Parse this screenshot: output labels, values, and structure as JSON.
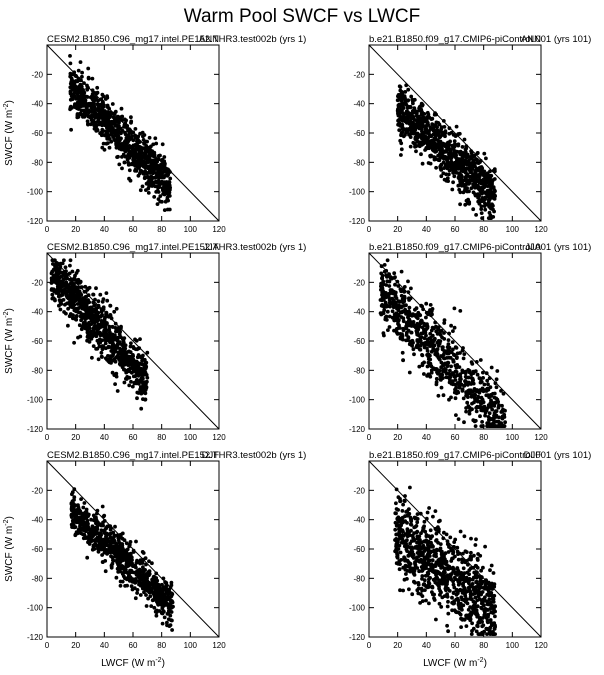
{
  "figure": {
    "title": "Warm Pool SWCF vs LWCF"
  },
  "axes": {
    "xlabel": "LWCF (W m",
    "ylabel": "SWCF (W m",
    "unit_sup": "-2",
    "unit_close": ")"
  },
  "chart_data": [
    {
      "type": "scatter",
      "title": "CESM2.B1850.C96_mg17.intel.PE152.THR3.test002b (yrs 1)",
      "season": "ANN",
      "xlim": [
        0,
        120
      ],
      "ylim": [
        -120,
        0
      ],
      "xticks": [
        0,
        20,
        40,
        60,
        80,
        100,
        120
      ],
      "yticks": [
        -20,
        -40,
        -60,
        -80,
        -100,
        -120
      ],
      "reference_line": {
        "from": [
          0,
          0
        ],
        "to": [
          120,
          -120
        ]
      },
      "cloud": {
        "x_min": 16,
        "x_max": 86,
        "slope": -0.95,
        "intercept": -14,
        "spread": 8,
        "count": 900
      }
    },
    {
      "type": "scatter",
      "title": "b.e21.B1850.f09_g17.CMIP6-piControl.001 (yrs 101)",
      "season": "ANN",
      "xlim": [
        0,
        120
      ],
      "ylim": [
        -120,
        0
      ],
      "xticks": [
        0,
        20,
        40,
        60,
        80,
        100,
        120
      ],
      "yticks": [
        -20,
        -40,
        -60,
        -80,
        -100,
        -120
      ],
      "reference_line": {
        "from": [
          0,
          0
        ],
        "to": [
          120,
          -120
        ]
      },
      "cloud": {
        "x_min": 20,
        "x_max": 88,
        "slope": -0.9,
        "intercept": -25,
        "spread": 9,
        "count": 900
      }
    },
    {
      "type": "scatter",
      "title": "CESM2.B1850.C96_mg17.intel.PE152.THR3.test002b (yrs 1)",
      "season": "JJA",
      "xlim": [
        0,
        120
      ],
      "ylim": [
        -120,
        0
      ],
      "xticks": [
        0,
        20,
        40,
        60,
        80,
        100,
        120
      ],
      "yticks": [
        -20,
        -40,
        -60,
        -80,
        -100,
        -120
      ],
      "reference_line": {
        "from": [
          0,
          0
        ],
        "to": [
          120,
          -120
        ]
      },
      "cloud": {
        "x_min": 3,
        "x_max": 70,
        "slope": -1.1,
        "intercept": -10,
        "spread": 9,
        "count": 900
      }
    },
    {
      "type": "scatter",
      "title": "b.e21.B1850.f09_g17.CMIP6-piControl.001 (yrs 101)",
      "season": "JJA",
      "xlim": [
        0,
        120
      ],
      "ylim": [
        -120,
        0
      ],
      "xticks": [
        0,
        20,
        40,
        60,
        80,
        100,
        120
      ],
      "yticks": [
        -20,
        -40,
        -60,
        -80,
        -100,
        -120
      ],
      "reference_line": {
        "from": [
          0,
          0
        ],
        "to": [
          120,
          -120
        ]
      },
      "cloud": {
        "x_min": 8,
        "x_max": 95,
        "slope": -1.05,
        "intercept": -18,
        "spread": 12,
        "count": 800
      }
    },
    {
      "type": "scatter",
      "title": "CESM2.B1850.C96_mg17.intel.PE152.THR3.test002b (yrs 1)",
      "season": "DJF",
      "xlim": [
        0,
        120
      ],
      "ylim": [
        -120,
        0
      ],
      "xticks": [
        0,
        20,
        40,
        60,
        80,
        100,
        120
      ],
      "yticks": [
        -20,
        -40,
        -60,
        -80,
        -100,
        -120
      ],
      "reference_line": {
        "from": [
          0,
          0
        ],
        "to": [
          120,
          -120
        ]
      },
      "cloud": {
        "x_min": 17,
        "x_max": 88,
        "slope": -0.93,
        "intercept": -18,
        "spread": 7,
        "count": 850
      }
    },
    {
      "type": "scatter",
      "title": "b.e21.B1850.f09_g17.CMIP6-piControl.001 (yrs 101)",
      "season": "DJF",
      "xlim": [
        0,
        120
      ],
      "ylim": [
        -120,
        0
      ],
      "xticks": [
        0,
        20,
        40,
        60,
        80,
        100,
        120
      ],
      "yticks": [
        -20,
        -40,
        -60,
        -80,
        -100,
        -120
      ],
      "reference_line": {
        "from": [
          0,
          0
        ],
        "to": [
          120,
          -120
        ]
      },
      "cloud": {
        "x_min": 18,
        "x_max": 88,
        "slope": -0.75,
        "intercept": -36,
        "spread": 14,
        "count": 900
      }
    }
  ]
}
